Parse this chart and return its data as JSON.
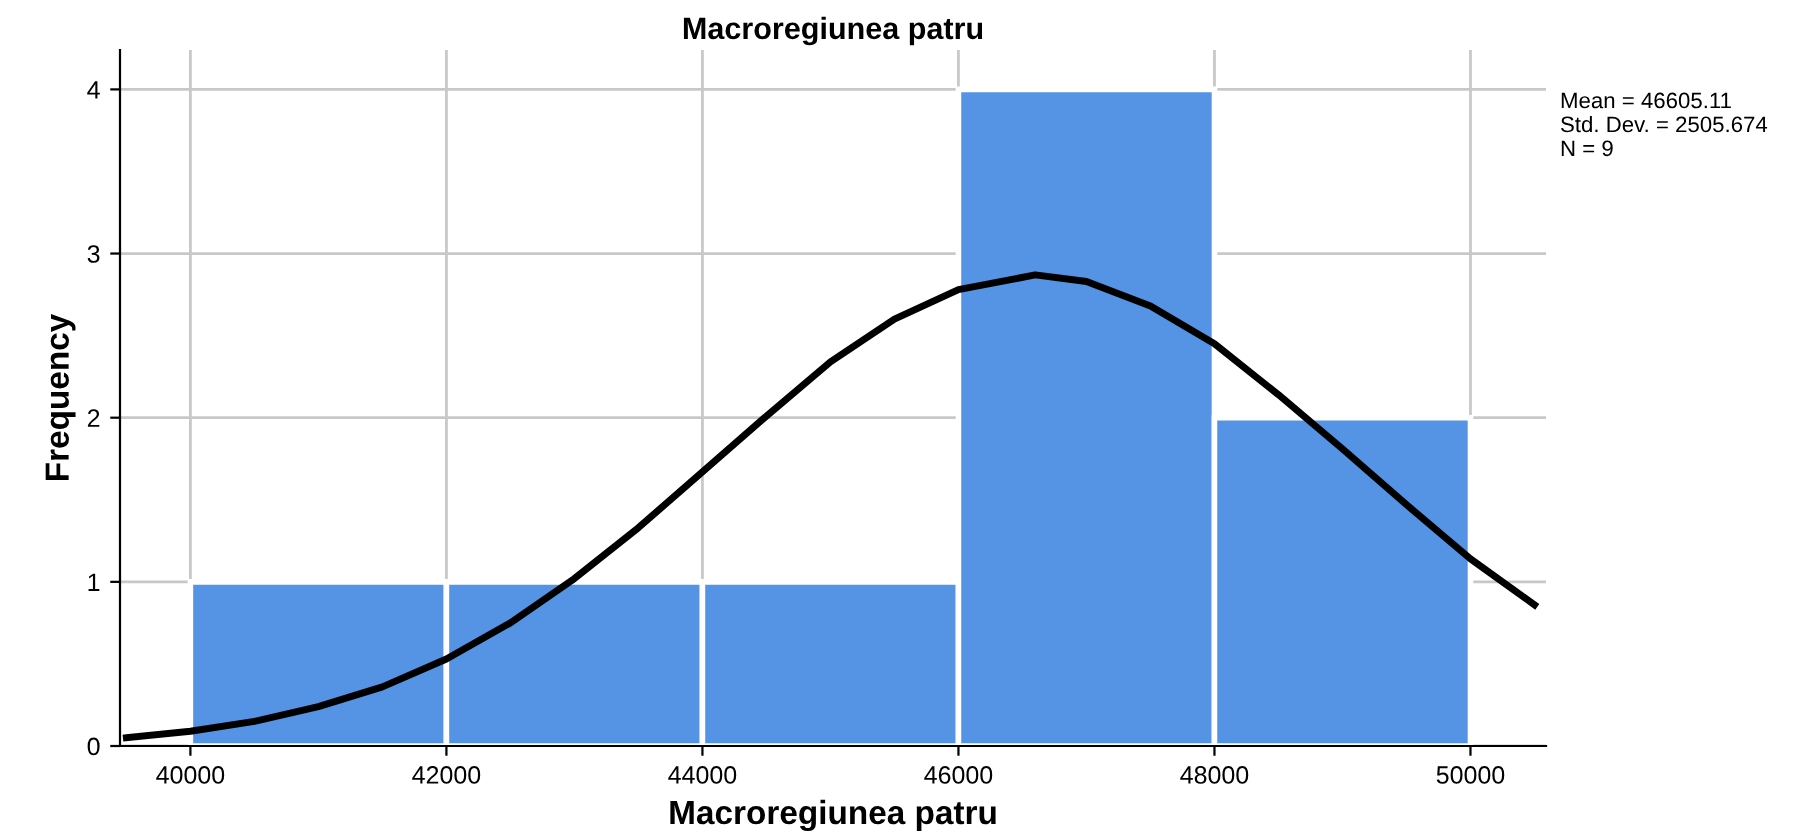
{
  "chart_data": {
    "type": "histogram",
    "title": "Macroregiunea patru",
    "xlabel": "Macroregiunea patru",
    "ylabel": "Frequency",
    "bins": [
      40000,
      42000,
      44000,
      46000,
      48000,
      50000
    ],
    "values": [
      1,
      1,
      1,
      4,
      2
    ],
    "color": "#5594e4",
    "series": [
      {
        "type": "line",
        "color": "#000000",
        "x": [
          39500,
          40000,
          40500,
          41000,
          41500,
          42000,
          42500,
          43000,
          43500,
          44000,
          44500,
          45000,
          45500,
          46000,
          46600,
          47000,
          47500,
          48000,
          48500,
          49000,
          49500,
          50000,
          50500
        ],
        "values": [
          0.05,
          0.09,
          0.15,
          0.24,
          0.36,
          0.53,
          0.75,
          1.02,
          1.33,
          1.67,
          2.01,
          2.34,
          2.6,
          2.78,
          2.87,
          2.83,
          2.68,
          2.45,
          2.14,
          1.81,
          1.47,
          1.14,
          0.86
        ]
      }
    ],
    "xlim": [
      39450,
      50590
    ],
    "ylim": [
      0,
      4.24
    ],
    "xticks": [
      40000,
      42000,
      44000,
      46000,
      48000,
      50000
    ],
    "yticks": [
      0,
      1,
      2,
      3,
      4
    ],
    "grid": true,
    "annotations": [
      "Mean = 46605.11\nStd. Dev. = 2505.674\nN = 9"
    ]
  }
}
